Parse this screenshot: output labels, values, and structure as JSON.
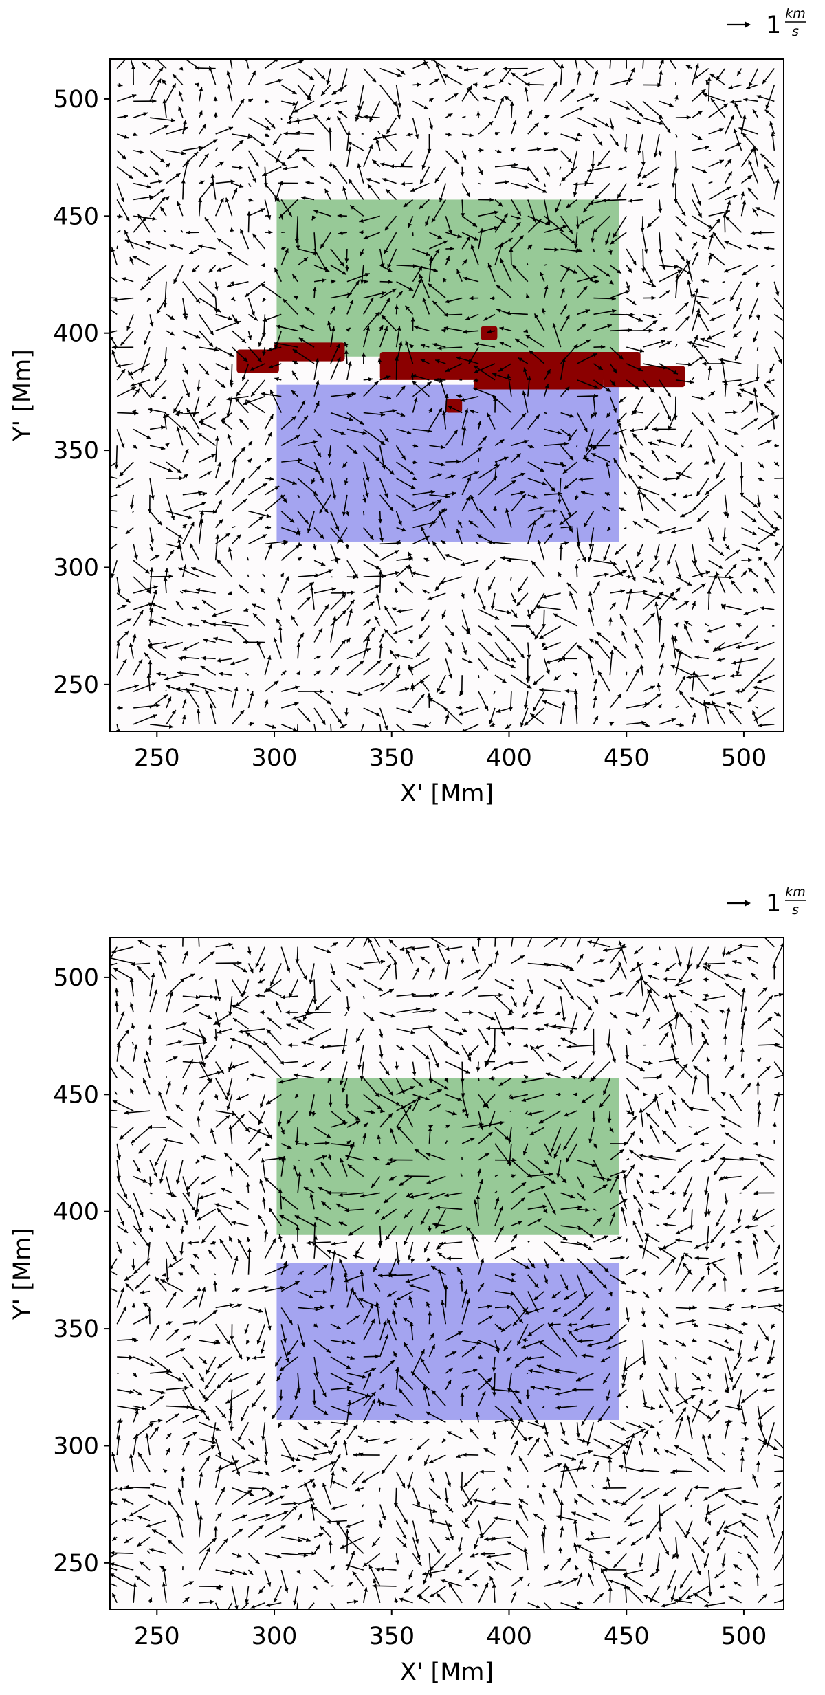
{
  "chart_data": [
    {
      "type": "quiver",
      "xlabel": "X' [Mm]",
      "ylabel": "Y' [Mm]",
      "xlim": [
        230,
        517
      ],
      "ylim": [
        230,
        517
      ],
      "xticks": [
        "250",
        "300",
        "350",
        "400",
        "450",
        "500"
      ],
      "yticks": [
        "250",
        "300",
        "350",
        "400",
        "450",
        "500"
      ],
      "quiver_key": {
        "value": "1",
        "numerator": "km",
        "denominator": "s"
      },
      "regions": [
        {
          "color": "#97c997",
          "x": [
            301,
            447
          ],
          "y": [
            390,
            457
          ]
        },
        {
          "color": "#a4a4f0",
          "x": [
            301,
            447
          ],
          "y": [
            311,
            378
          ]
        }
      ],
      "mask_color": "#8b0000",
      "mask_patches": [
        {
          "x": [
            284,
            302
          ],
          "y": [
            383,
            393
          ]
        },
        {
          "x": [
            300,
            330
          ],
          "y": [
            388,
            396
          ]
        },
        {
          "x": [
            345,
            456
          ],
          "y": [
            380,
            392
          ]
        },
        {
          "x": [
            385,
            440
          ],
          "y": [
            376,
            386
          ]
        },
        {
          "x": [
            440,
            475
          ],
          "y": [
            377,
            386
          ]
        },
        {
          "x": [
            388,
            395
          ],
          "y": [
            397,
            403
          ]
        },
        {
          "x": [
            373,
            380
          ],
          "y": [
            366,
            372
          ]
        }
      ]
    },
    {
      "type": "quiver",
      "xlabel": "X' [Mm]",
      "ylabel": "Y' [Mm]",
      "xlim": [
        230,
        517
      ],
      "ylim": [
        230,
        517
      ],
      "xticks": [
        "250",
        "300",
        "350",
        "400",
        "450",
        "500"
      ],
      "yticks": [
        "250",
        "300",
        "350",
        "400",
        "450",
        "500"
      ],
      "quiver_key": {
        "value": "1",
        "numerator": "km",
        "denominator": "s"
      },
      "regions": [
        {
          "color": "#97c997",
          "x": [
            301,
            447
          ],
          "y": [
            390,
            457
          ]
        },
        {
          "color": "#a4a4f0",
          "x": [
            301,
            447
          ],
          "y": [
            311,
            378
          ]
        }
      ],
      "mask_color": "#8b0000",
      "mask_patches": []
    }
  ]
}
